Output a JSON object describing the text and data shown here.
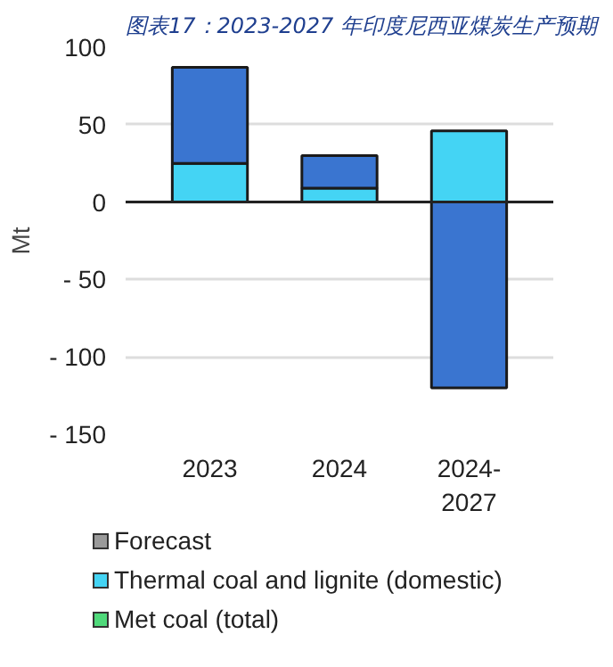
{
  "chart_data": {
    "type": "bar",
    "stacked": true,
    "title": "图表17：2023-2027 年印度尼西亚煤炭生产预期",
    "ylabel": "Mt",
    "categories": [
      "2023",
      "2024",
      "2024-\n2027"
    ],
    "series": [
      {
        "name": "Forecast",
        "color": "#9a9a9a",
        "values": [
          null,
          null,
          null
        ]
      },
      {
        "name": "Thermal coal and lignite (domestic)",
        "color": "#44d4f4",
        "values": [
          25,
          9,
          46
        ]
      },
      {
        "color": "#3a75d0",
        "values": [
          62,
          21,
          -120
        ]
      },
      {
        "name": "Met coal (total)",
        "color": "#4fd97a",
        "values": [
          null,
          null,
          null
        ]
      }
    ],
    "ylim": [
      -150,
      100
    ],
    "yticks": [
      100,
      50,
      0,
      {
        "value": -50,
        "label": "- 50"
      },
      {
        "value": -100,
        "label": "- 100"
      },
      {
        "value": -150,
        "label": "- 150"
      }
    ],
    "grid": "y",
    "legend": "bottom"
  }
}
